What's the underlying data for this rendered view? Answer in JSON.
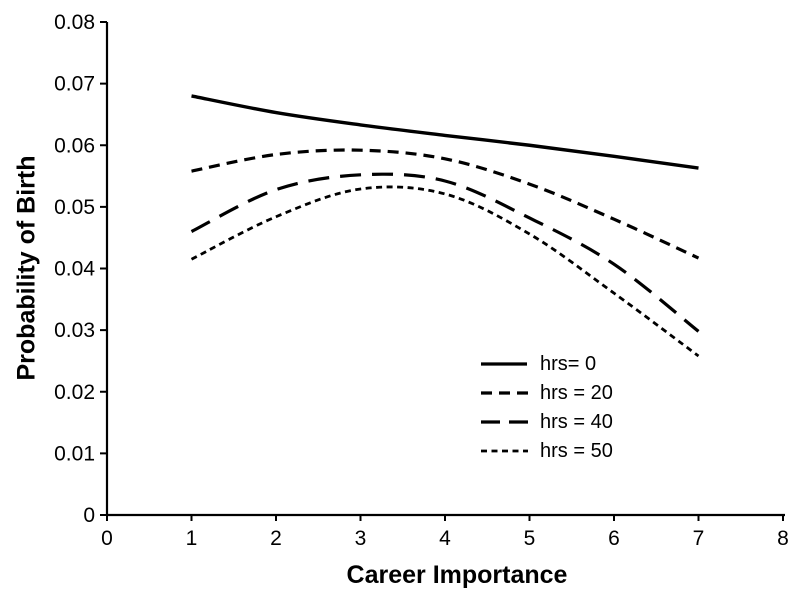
{
  "figure": {
    "background": "#ffffff",
    "ink_color": "#000000"
  },
  "chart_data": {
    "type": "line",
    "title": "",
    "xlabel": "Career Importance",
    "ylabel": "Probability of Birth",
    "xlim": [
      0,
      8
    ],
    "ylim": [
      0,
      0.08
    ],
    "x_ticks": [
      0,
      1,
      2,
      3,
      4,
      5,
      6,
      7,
      8
    ],
    "x_tick_labels": [
      "0",
      "1",
      "2",
      "3",
      "4",
      "5",
      "6",
      "7",
      "8"
    ],
    "y_ticks": [
      0,
      0.01,
      0.02,
      0.03,
      0.04,
      0.05,
      0.06,
      0.07,
      0.08
    ],
    "y_tick_labels": [
      "0",
      "0.01",
      "0.02",
      "0.03",
      "0.04",
      "0.05",
      "0.06",
      "0.07",
      "0.08"
    ],
    "grid": false,
    "legend_position": "inside-lower-right",
    "x": [
      1,
      2,
      3,
      4,
      5,
      6,
      7
    ],
    "series": [
      {
        "name": "hrs0",
        "label": "hrs= 0",
        "dash": "solid",
        "values": [
          0.068,
          0.0653,
          0.0633,
          0.0616,
          0.06,
          0.0582,
          0.0563
        ]
      },
      {
        "name": "hrs20",
        "label": "hrs = 20",
        "dash": "medium-dash",
        "values": [
          0.0558,
          0.0585,
          0.0592,
          0.0578,
          0.0537,
          0.048,
          0.0417
        ]
      },
      {
        "name": "hrs40",
        "label": "hrs = 40",
        "dash": "long-dash",
        "values": [
          0.046,
          0.0528,
          0.0552,
          0.0542,
          0.0482,
          0.0407,
          0.0298
        ]
      },
      {
        "name": "hrs50",
        "label": "hrs = 50",
        "dash": "short-dash",
        "values": [
          0.0415,
          0.0484,
          0.0529,
          0.0521,
          0.0456,
          0.036,
          0.0258
        ]
      }
    ]
  }
}
